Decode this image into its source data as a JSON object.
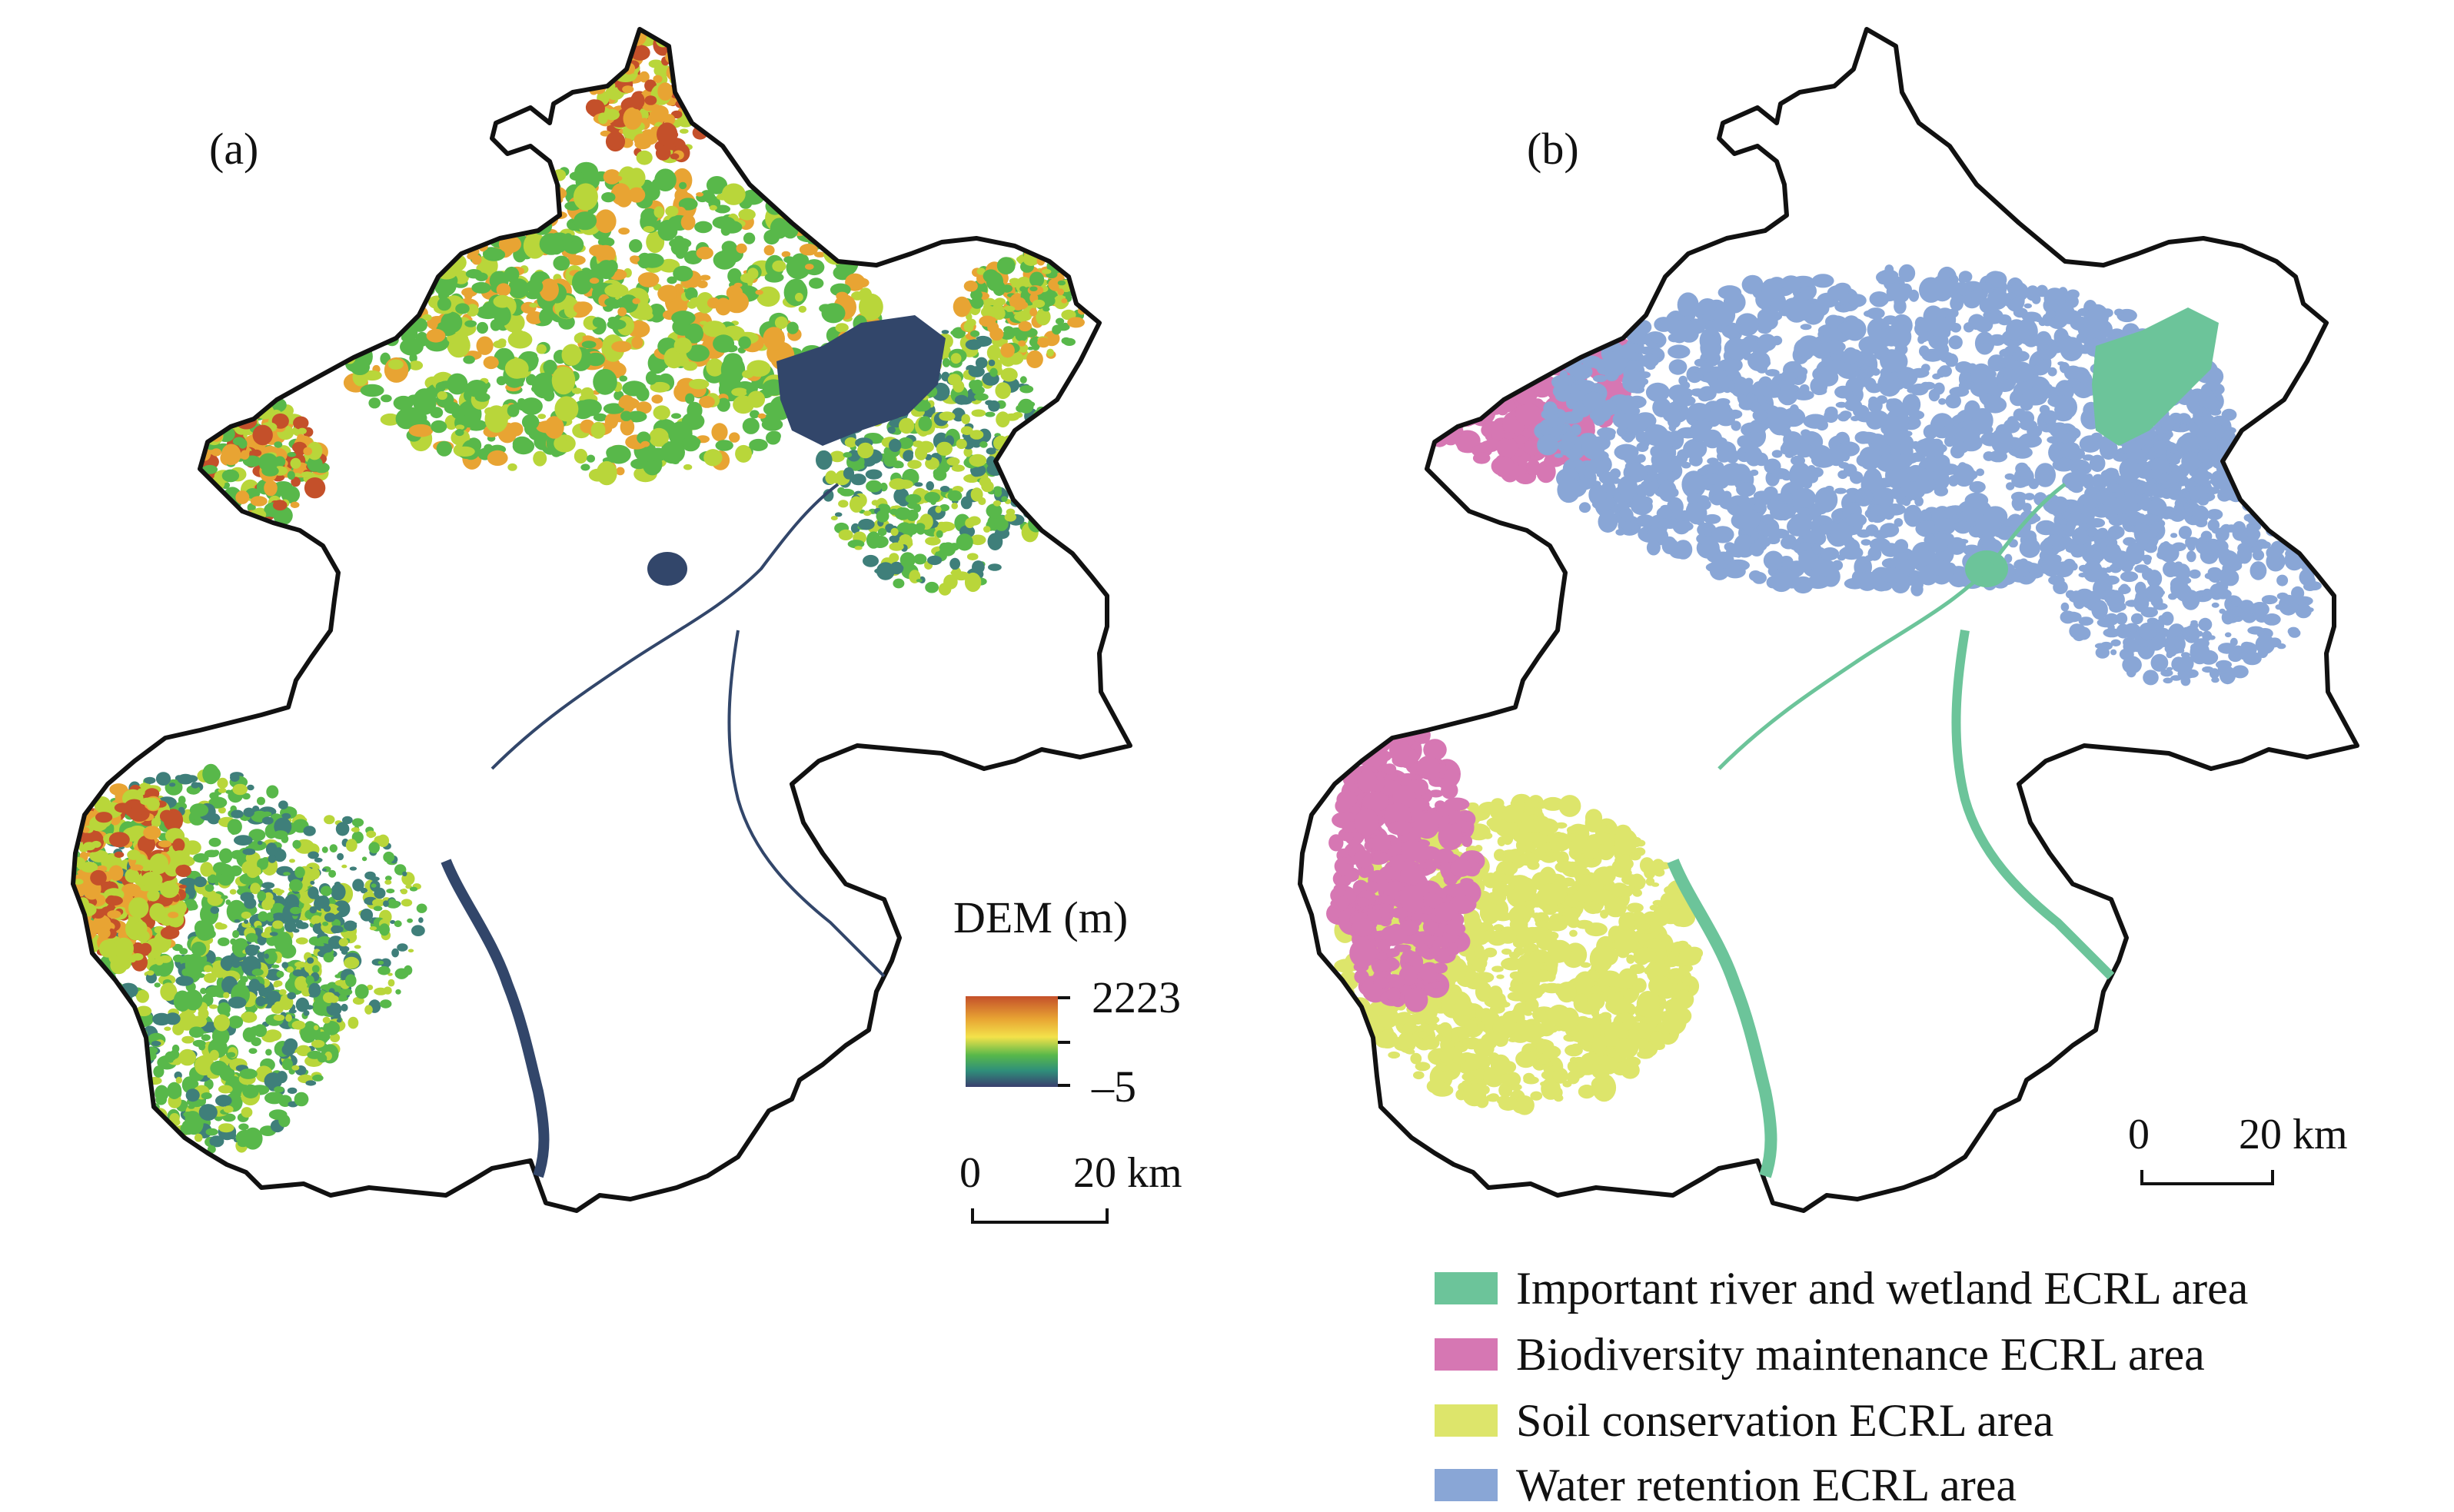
{
  "colors": {
    "boundary": "#111111",
    "green": "#58b84a",
    "yellowgreen": "#b9d63a",
    "orange": "#e8a433",
    "red": "#c4502a",
    "teal": "#3f7f7a",
    "navy": "#32466a",
    "wetland": "#6cc49a",
    "biodiversity": "#d677b3",
    "soil": "#dde56b",
    "water": "#89a6d6"
  },
  "panel_a": {
    "label": "(a)",
    "legend": {
      "title": "DEM (m)",
      "max": "2223",
      "min": "–5",
      "gradient": [
        "#c4502a",
        "#e8a433",
        "#f3e24a",
        "#58b84a",
        "#2f8f7a",
        "#3a3f6e"
      ]
    },
    "scale": {
      "zero": "0",
      "distance": "20 km"
    }
  },
  "panel_b": {
    "label": "(b)",
    "scale": {
      "zero": "0",
      "distance": "20 km"
    },
    "legend": [
      {
        "label": "Important river and wetland ECRL area",
        "color": "#6cc49a"
      },
      {
        "label": "Biodiversity maintenance ECRL area",
        "color": "#d677b3"
      },
      {
        "label": "Soil conservation ECRL area",
        "color": "#dde56b"
      },
      {
        "label": "Water retention ECRL area",
        "color": "#89a6d6"
      }
    ]
  }
}
